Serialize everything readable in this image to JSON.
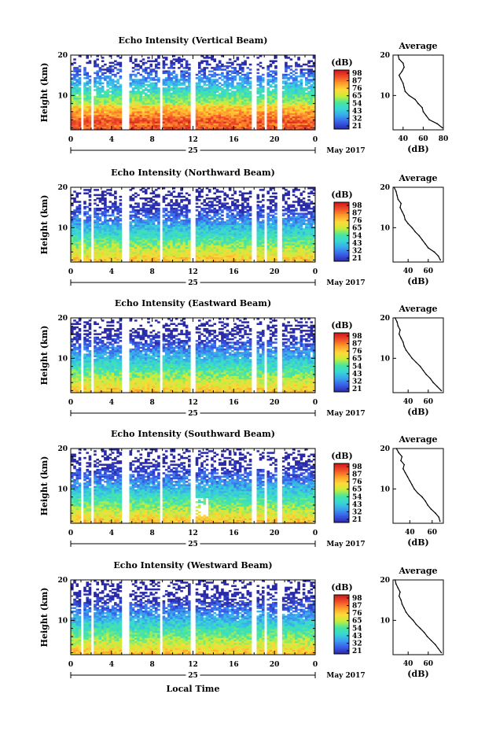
{
  "figure": {
    "xlabel_bottom": "Local Time",
    "date_center": "25",
    "date_right": "May 2017"
  },
  "chart_data": [
    {
      "type": "heatmap",
      "title": "Echo Intensity (Vertical Beam)",
      "xlabel": "Local Time",
      "ylabel": "Height (km)",
      "colorbar_label": "(dB)",
      "x_ticks": [
        "0",
        "4",
        "8",
        "12",
        "16",
        "20",
        "0"
      ],
      "y_ticks": [
        "10",
        "20"
      ],
      "xlim": [
        0,
        24
      ],
      "ylim": [
        1.5,
        20
      ],
      "colorbar_ticks": [
        "98",
        "87",
        "76",
        "65",
        "54",
        "43",
        "32",
        "21"
      ],
      "gaps_hours": [
        [
          0.9,
          1.3
        ],
        [
          1.9,
          2.3
        ],
        [
          5.1,
          5.8
        ],
        [
          8.7,
          9.1
        ],
        [
          11.8,
          12.3
        ],
        [
          17.8,
          18.2
        ],
        [
          18.9,
          19.3
        ],
        [
          20.3,
          20.8
        ]
      ],
      "profile": {
        "title": "Average",
        "xlabel": "(dB)",
        "x_ticks": [
          "40",
          "60",
          "80"
        ],
        "xlim": [
          30,
          80
        ],
        "y_ticks": [
          "10",
          "20"
        ],
        "ylim": [
          1.5,
          20
        ],
        "height": [
          2,
          3,
          4,
          5,
          6,
          7,
          8,
          9,
          10,
          11,
          12,
          13,
          14,
          15,
          16,
          17,
          18,
          19,
          20
        ],
        "value": [
          79,
          74,
          66,
          63,
          60,
          59,
          55,
          52,
          46,
          42,
          41,
          40,
          38,
          36,
          39,
          41,
          40,
          36,
          35
        ]
      }
    },
    {
      "type": "heatmap",
      "title": "Echo Intensity (Northward Beam)",
      "xlabel": "Local Time",
      "ylabel": "Height (km)",
      "colorbar_label": "(dB)",
      "x_ticks": [
        "0",
        "4",
        "8",
        "12",
        "16",
        "20",
        "0"
      ],
      "y_ticks": [
        "10",
        "20"
      ],
      "xlim": [
        0,
        24
      ],
      "ylim": [
        1.5,
        20
      ],
      "colorbar_ticks": [
        "98",
        "87",
        "76",
        "65",
        "54",
        "43",
        "32",
        "21"
      ],
      "gaps_hours": [
        [
          0.9,
          1.3
        ],
        [
          1.9,
          2.3
        ],
        [
          5.1,
          5.8
        ],
        [
          8.7,
          9.1
        ],
        [
          11.8,
          12.3
        ],
        [
          17.8,
          18.2
        ],
        [
          18.9,
          19.3
        ],
        [
          20.3,
          20.8
        ]
      ],
      "profile": {
        "title": "Average",
        "xlabel": "(dB)",
        "x_ticks": [
          "40",
          "60"
        ],
        "xlim": [
          25,
          75
        ],
        "y_ticks": [
          "10",
          "20"
        ],
        "ylim": [
          1.5,
          20
        ],
        "height": [
          2,
          3,
          4,
          5,
          6,
          7,
          8,
          9,
          10,
          11,
          12,
          13,
          14,
          15,
          16,
          17,
          18,
          19,
          20
        ],
        "value": [
          72,
          70,
          66,
          60,
          57,
          54,
          51,
          47,
          44,
          40,
          37,
          36,
          34,
          32,
          33,
          30,
          29,
          28,
          26
        ]
      }
    },
    {
      "type": "heatmap",
      "title": "Echo Intensity (Eastward Beam)",
      "xlabel": "Local Time",
      "ylabel": "Height (km)",
      "colorbar_label": "(dB)",
      "x_ticks": [
        "0",
        "4",
        "8",
        "12",
        "16",
        "20",
        "0"
      ],
      "y_ticks": [
        "10",
        "20"
      ],
      "xlim": [
        0,
        24
      ],
      "ylim": [
        1.5,
        20
      ],
      "colorbar_ticks": [
        "98",
        "87",
        "76",
        "65",
        "54",
        "43",
        "32",
        "21"
      ],
      "gaps_hours": [
        [
          0.9,
          1.3
        ],
        [
          1.9,
          2.3
        ],
        [
          5.1,
          5.8
        ],
        [
          8.7,
          9.1
        ],
        [
          11.8,
          12.3
        ],
        [
          17.8,
          18.2
        ],
        [
          18.9,
          19.3
        ],
        [
          20.3,
          20.8
        ]
      ],
      "profile": {
        "title": "Average",
        "xlabel": "(dB)",
        "x_ticks": [
          "40",
          "60"
        ],
        "xlim": [
          25,
          75
        ],
        "y_ticks": [
          "10",
          "20"
        ],
        "ylim": [
          1.5,
          20
        ],
        "height": [
          2,
          3,
          4,
          5,
          6,
          7,
          8,
          9,
          10,
          11,
          12,
          13,
          14,
          15,
          16,
          17,
          18,
          19,
          20
        ],
        "value": [
          73,
          69,
          65,
          62,
          58,
          55,
          52,
          48,
          44,
          41,
          38,
          36,
          35,
          33,
          31,
          32,
          30,
          29,
          27
        ]
      }
    },
    {
      "type": "heatmap",
      "title": "Echo Intensity (Southward Beam)",
      "xlabel": "Local Time",
      "ylabel": "Height (km)",
      "colorbar_label": "(dB)",
      "x_ticks": [
        "0",
        "4",
        "8",
        "12",
        "16",
        "20",
        "0"
      ],
      "y_ticks": [
        "10",
        "20"
      ],
      "xlim": [
        0,
        24
      ],
      "ylim": [
        1.5,
        20
      ],
      "colorbar_ticks": [
        "98",
        "87",
        "76",
        "65",
        "54",
        "43",
        "32",
        "21"
      ],
      "gaps_hours": [
        [
          0.9,
          1.3
        ],
        [
          1.9,
          2.3
        ],
        [
          5.1,
          5.8
        ],
        [
          8.7,
          9.1
        ],
        [
          11.8,
          12.3
        ],
        [
          17.8,
          18.2
        ],
        [
          18.9,
          19.3
        ],
        [
          20.3,
          20.8
        ]
      ],
      "profile": {
        "title": "Average",
        "xlabel": "(dB)",
        "x_ticks": [
          "40",
          "60"
        ],
        "xlim": [
          25,
          70
        ],
        "y_ticks": [
          "10",
          "20"
        ],
        "ylim": [
          1.5,
          20
        ],
        "height": [
          2,
          3,
          4,
          5,
          6,
          7,
          8,
          9,
          10,
          11,
          12,
          13,
          14,
          15,
          16,
          17,
          18,
          19,
          20
        ],
        "value": [
          67,
          66,
          63,
          59,
          56,
          54,
          51,
          47,
          44,
          42,
          40,
          38,
          36,
          34,
          35,
          32,
          33,
          30,
          28
        ]
      }
    },
    {
      "type": "heatmap",
      "title": "Echo Intensity (Westward Beam)",
      "xlabel": "Local Time",
      "ylabel": "Height (km)",
      "colorbar_label": "(dB)",
      "x_ticks": [
        "0",
        "4",
        "8",
        "12",
        "16",
        "20",
        "0"
      ],
      "y_ticks": [
        "10",
        "20"
      ],
      "xlim": [
        0,
        24
      ],
      "ylim": [
        1.5,
        20
      ],
      "colorbar_ticks": [
        "98",
        "87",
        "76",
        "65",
        "54",
        "43",
        "32",
        "21"
      ],
      "gaps_hours": [
        [
          0.9,
          1.3
        ],
        [
          1.9,
          2.3
        ],
        [
          5.1,
          5.8
        ],
        [
          8.7,
          9.1
        ],
        [
          11.8,
          12.3
        ],
        [
          17.8,
          18.2
        ],
        [
          18.9,
          19.3
        ],
        [
          20.3,
          20.8
        ]
      ],
      "profile": {
        "title": "Average",
        "xlabel": "(dB)",
        "x_ticks": [
          "40",
          "60"
        ],
        "xlim": [
          25,
          75
        ],
        "y_ticks": [
          "10",
          "20"
        ],
        "ylim": [
          1.5,
          20
        ],
        "height": [
          2,
          3,
          4,
          5,
          6,
          7,
          8,
          9,
          10,
          11,
          12,
          13,
          14,
          15,
          16,
          17,
          18,
          19,
          20
        ],
        "value": [
          73,
          70,
          67,
          63,
          59,
          56,
          52,
          48,
          45,
          41,
          38,
          36,
          34,
          33,
          31,
          32,
          30,
          28,
          27
        ]
      }
    }
  ],
  "colors": {
    "colormap": [
      "#2a2aa6",
      "#3a5be8",
      "#3aa0f0",
      "#38d6d6",
      "#46e6a0",
      "#c8ee3a",
      "#ffd83a",
      "#ff9a2a",
      "#f04a2a",
      "#c81a1a"
    ]
  }
}
